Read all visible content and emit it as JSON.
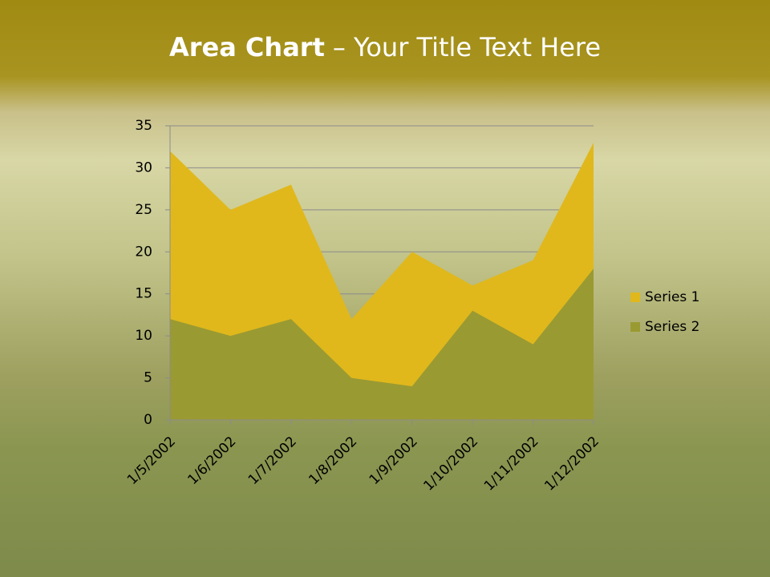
{
  "chart_data": {
    "type": "area",
    "title": {
      "bold": "Area Chart",
      "rest": "– Your Title Text Here"
    },
    "categories": [
      "1/5/2002",
      "1/6/2002",
      "1/7/2002",
      "1/8/2002",
      "1/9/2002",
      "1/10/2002",
      "1/11/2002",
      "1/12/2002"
    ],
    "series": [
      {
        "name": "Series 1",
        "color": "#e0b81c",
        "values": [
          32,
          25,
          28,
          12,
          20,
          16,
          19,
          33
        ]
      },
      {
        "name": "Series 2",
        "color": "#9a9a32",
        "values": [
          12,
          10,
          12,
          5,
          4,
          13,
          9,
          18
        ]
      }
    ],
    "ylim": [
      0,
      35
    ],
    "yticks": [
      0,
      5,
      10,
      15,
      20,
      25,
      30,
      35
    ],
    "grid": true,
    "legend": "right"
  }
}
